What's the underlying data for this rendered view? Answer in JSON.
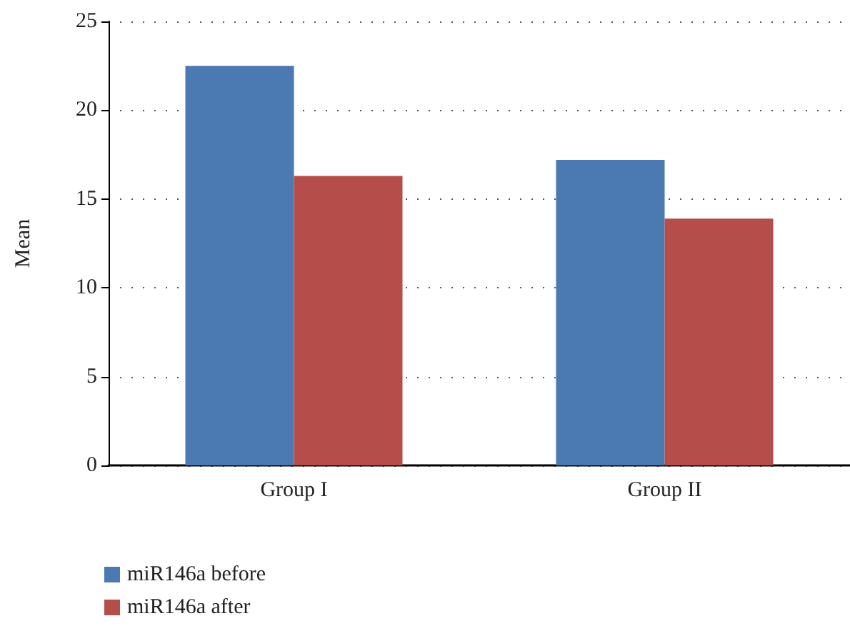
{
  "chart_data": {
    "type": "bar",
    "ylabel": "Mean",
    "categories": [
      "Group I",
      "Group II"
    ],
    "series": [
      {
        "name": "miR146a before",
        "color": "#4b79b2",
        "values": [
          22.5,
          17.2
        ]
      },
      {
        "name": "miR146a after",
        "color": "#b54e4b",
        "values": [
          16.3,
          13.9
        ]
      }
    ],
    "ylim": [
      0,
      25
    ],
    "yticks": [
      0,
      5,
      10,
      15,
      20,
      25
    ],
    "grid": "y",
    "legend": "bottom left"
  }
}
